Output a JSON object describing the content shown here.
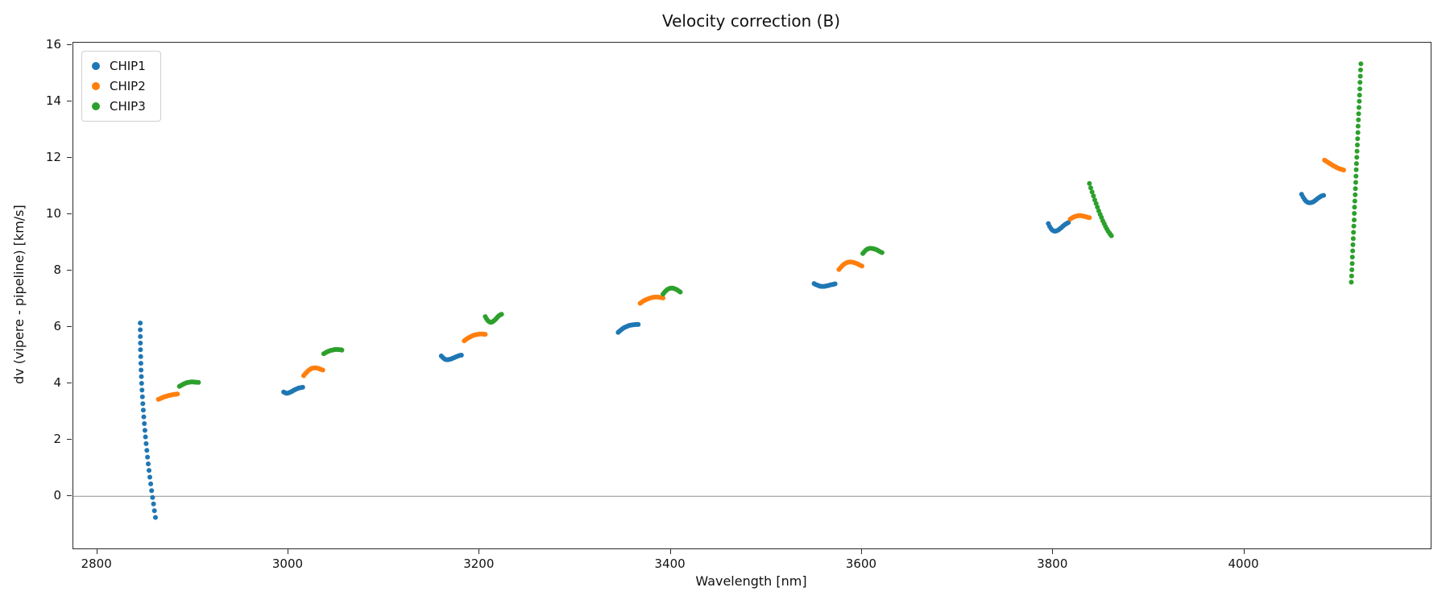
{
  "chart_data": {
    "type": "scatter",
    "title": "Velocity correction (B)",
    "xlabel": "Wavelength [nm]",
    "ylabel": "dv (vipere - pipeline) [km/s]",
    "xlim": [
      2775,
      4195
    ],
    "ylim": [
      -1.85,
      16.1
    ],
    "x_ticks": [
      2800,
      3000,
      3200,
      3400,
      3600,
      3800,
      4000
    ],
    "y_ticks": [
      0,
      2,
      4,
      6,
      8,
      10,
      12,
      14,
      16
    ],
    "grid": false,
    "legend_position": "upper-left",
    "zero_line": {
      "y": 0,
      "color": "#909090"
    },
    "series": [
      {
        "name": "CHIP1",
        "color": "#1f77b4",
        "clusters": [
          {
            "x": [
              2845.0,
              2845.0,
              2845.1,
              2845.2,
              2845.3,
              2845.5,
              2845.7,
              2845.9,
              2846.2,
              2846.5,
              2846.9,
              2847.3,
              2847.7,
              2848.2,
              2848.7,
              2849.3,
              2849.9,
              2850.5,
              2851.2,
              2851.9,
              2852.6,
              2853.4,
              2854.2,
              2855.1,
              2856.0,
              2856.9,
              2857.9,
              2858.9,
              2859.9,
              2861.0
            ],
            "y": [
              6.15,
              5.91,
              5.67,
              5.44,
              5.2,
              4.96,
              4.72,
              4.48,
              4.25,
              4.01,
              3.77,
              3.53,
              3.29,
              3.06,
              2.82,
              2.58,
              2.34,
              2.11,
              1.87,
              1.63,
              1.39,
              1.15,
              0.92,
              0.68,
              0.44,
              0.2,
              -0.04,
              -0.27,
              -0.51,
              -0.75
            ]
          },
          {
            "x": [
              2995,
              2996.3,
              2997.6,
              2998.9,
              3000.2,
              3001.5,
              3002.8,
              3004.1,
              3005.4,
              3006.7,
              3008,
              3009.3,
              3010.6,
              3011.9,
              3013.2,
              3015
            ],
            "y": [
              3.7,
              3.68,
              3.66,
              3.66,
              3.67,
              3.69,
              3.71,
              3.73,
              3.76,
              3.78,
              3.8,
              3.82,
              3.84,
              3.85,
              3.86,
              3.87
            ]
          },
          {
            "x": [
              3160,
              3161.4,
              3162.8,
              3164.2,
              3165.6,
              3167,
              3168.4,
              3169.8,
              3171.2,
              3172.6,
              3174,
              3175.4,
              3176.8,
              3178.2,
              3179.6,
              3181
            ],
            "y": [
              4.98,
              4.93,
              4.89,
              4.86,
              4.85,
              4.85,
              4.86,
              4.87,
              4.89,
              4.91,
              4.93,
              4.95,
              4.97,
              4.99,
              5.0,
              5.01
            ]
          },
          {
            "x": [
              3345,
              3346.4,
              3347.8,
              3349.2,
              3350.6,
              3352,
              3353.4,
              3354.8,
              3356.2,
              3357.6,
              3359,
              3360.4,
              3361.8,
              3363.2,
              3364.6,
              3366
            ],
            "y": [
              5.82,
              5.86,
              5.9,
              5.94,
              5.97,
              6.0,
              6.02,
              6.04,
              6.06,
              6.07,
              6.08,
              6.09,
              6.09,
              6.1,
              6.1,
              6.1
            ]
          },
          {
            "x": [
              3550,
              3551.5,
              3553,
              3554.5,
              3556,
              3557.5,
              3559,
              3560.5,
              3562,
              3563.5,
              3565,
              3566.5,
              3568,
              3569.5,
              3571,
              3572
            ],
            "y": [
              7.55,
              7.52,
              7.5,
              7.48,
              7.46,
              7.45,
              7.45,
              7.45,
              7.46,
              7.47,
              7.48,
              7.5,
              7.51,
              7.52,
              7.53,
              7.54
            ]
          },
          {
            "x": [
              3795,
              3796.4,
              3797.8,
              3799.2,
              3800.6,
              3802,
              3803.4,
              3804.8,
              3806.2,
              3807.6,
              3809,
              3810.4,
              3811.8,
              3813.2,
              3814.6,
              3816
            ],
            "y": [
              9.68,
              9.58,
              9.5,
              9.45,
              9.42,
              9.41,
              9.42,
              9.44,
              9.47,
              9.51,
              9.55,
              9.59,
              9.63,
              9.66,
              9.69,
              9.72
            ]
          },
          {
            "x": [
              4060,
              4061.5,
              4063,
              4064.5,
              4066,
              4067.5,
              4069,
              4070.5,
              4072,
              4073.5,
              4075,
              4076.5,
              4078,
              4079.5,
              4081,
              4083
            ],
            "y": [
              10.72,
              10.62,
              10.54,
              10.48,
              10.44,
              10.42,
              10.42,
              10.43,
              10.45,
              10.48,
              10.52,
              10.56,
              10.6,
              10.63,
              10.66,
              10.68
            ]
          }
        ]
      },
      {
        "name": "CHIP2",
        "color": "#ff7f0e",
        "clusters": [
          {
            "x": [
              2864,
              2865.4,
              2866.8,
              2868.2,
              2869.6,
              2871,
              2872.4,
              2873.8,
              2875.2,
              2876.6,
              2878,
              2879.4,
              2880.8,
              2882.2,
              2884
            ],
            "y": [
              3.44,
              3.46,
              3.48,
              3.5,
              3.52,
              3.54,
              3.55,
              3.57,
              3.58,
              3.59,
              3.6,
              3.61,
              3.62,
              3.62,
              3.63
            ]
          },
          {
            "x": [
              3016,
              3017.4,
              3018.8,
              3020.2,
              3021.6,
              3023,
              3024.4,
              3025.8,
              3027.2,
              3028.6,
              3030,
              3031.4,
              3032.8,
              3034.2,
              3036
            ],
            "y": [
              4.28,
              4.34,
              4.39,
              4.44,
              4.48,
              4.51,
              4.54,
              4.55,
              4.56,
              4.56,
              4.55,
              4.54,
              4.52,
              4.5,
              4.48
            ]
          },
          {
            "x": [
              3184,
              3185.6,
              3187.2,
              3188.8,
              3190.4,
              3192,
              3193.6,
              3195.2,
              3196.8,
              3198.4,
              3200,
              3201.6,
              3203.2,
              3204.8,
              3206
            ],
            "y": [
              5.52,
              5.56,
              5.6,
              5.63,
              5.66,
              5.69,
              5.71,
              5.73,
              5.74,
              5.75,
              5.76,
              5.76,
              5.76,
              5.75,
              5.75
            ]
          },
          {
            "x": [
              3368,
              3369.7,
              3371.4,
              3373.1,
              3374.8,
              3376.5,
              3378.2,
              3379.9,
              3381.6,
              3383.3,
              3385,
              3386.7,
              3388.4,
              3390.1,
              3392
            ],
            "y": [
              6.85,
              6.89,
              6.93,
              6.96,
              6.99,
              7.01,
              7.03,
              7.05,
              7.06,
              7.07,
              7.07,
              7.07,
              7.06,
              7.05,
              7.04
            ]
          },
          {
            "x": [
              3576,
              3577.7,
              3579.4,
              3581.1,
              3582.8,
              3584.5,
              3586.2,
              3587.9,
              3589.6,
              3591.3,
              3593,
              3594.7,
              3596.4,
              3598.1,
              3600
            ],
            "y": [
              8.05,
              8.12,
              8.18,
              8.23,
              8.27,
              8.3,
              8.31,
              8.32,
              8.31,
              8.3,
              8.28,
              8.26,
              8.23,
              8.2,
              8.17
            ]
          },
          {
            "x": [
              3818,
              3819.4,
              3820.8,
              3822.2,
              3823.6,
              3825,
              3826.4,
              3827.8,
              3829.2,
              3830.6,
              3832,
              3833.4,
              3834.8,
              3836.2,
              3838
            ],
            "y": [
              9.84,
              9.87,
              9.9,
              9.92,
              9.94,
              9.95,
              9.96,
              9.96,
              9.96,
              9.95,
              9.94,
              9.93,
              9.92,
              9.9,
              9.89
            ]
          },
          {
            "x": [
              4084,
              4085.4,
              4086.8,
              4088.2,
              4089.6,
              4091,
              4092.4,
              4093.8,
              4095.2,
              4096.6,
              4098,
              4099.4,
              4100.8,
              4102.2,
              4104
            ],
            "y": [
              11.93,
              11.9,
              11.87,
              11.84,
              11.81,
              11.78,
              11.75,
              11.72,
              11.7,
              11.67,
              11.65,
              11.63,
              11.61,
              11.6,
              11.58
            ]
          }
        ]
      },
      {
        "name": "CHIP3",
        "color": "#2ca02c",
        "clusters": [
          {
            "x": [
              2886,
              2887.5,
              2889,
              2890.5,
              2892,
              2893.5,
              2895,
              2896.5,
              2898,
              2899.5,
              2901,
              2902.5,
              2904,
              2906
            ],
            "y": [
              3.9,
              3.93,
              3.96,
              3.99,
              4.01,
              4.03,
              4.04,
              4.05,
              4.06,
              4.06,
              4.06,
              4.05,
              4.05,
              4.04
            ]
          },
          {
            "x": [
              3037,
              3038.5,
              3040,
              3041.5,
              3043,
              3044.5,
              3046,
              3047.5,
              3049,
              3050.5,
              3052,
              3053.5,
              3055,
              3056
            ],
            "y": [
              5.06,
              5.09,
              5.12,
              5.14,
              5.16,
              5.18,
              5.19,
              5.2,
              5.21,
              5.21,
              5.21,
              5.2,
              5.2,
              5.19
            ]
          },
          {
            "x": [
              3206,
              3207.3,
              3208.6,
              3209.9,
              3211.2,
              3212.5,
              3213.8,
              3215.1,
              3216.4,
              3217.7,
              3219,
              3220.3,
              3221.6,
              3223
            ],
            "y": [
              6.38,
              6.3,
              6.24,
              6.2,
              6.18,
              6.18,
              6.2,
              6.23,
              6.27,
              6.32,
              6.37,
              6.41,
              6.44,
              6.46
            ]
          },
          {
            "x": [
              3392,
              3393.4,
              3394.8,
              3396.2,
              3397.6,
              3399,
              3400.4,
              3401.8,
              3403.2,
              3404.6,
              3406,
              3407.4,
              3408.8,
              3410
            ],
            "y": [
              7.18,
              7.24,
              7.29,
              7.33,
              7.36,
              7.38,
              7.39,
              7.39,
              7.38,
              7.36,
              7.34,
              7.31,
              7.28,
              7.25
            ]
          },
          {
            "x": [
              3601,
              3602.5,
              3604,
              3605.5,
              3607,
              3608.5,
              3610,
              3611.5,
              3613,
              3614.5,
              3616,
              3617.5,
              3619,
              3621
            ],
            "y": [
              8.62,
              8.68,
              8.73,
              8.77,
              8.79,
              8.8,
              8.8,
              8.79,
              8.78,
              8.76,
              8.74,
              8.71,
              8.68,
              8.65
            ]
          },
          {
            "x": [
              3838,
              3839.4,
              3840.8,
              3842.2,
              3843.6,
              3845,
              3846.4,
              3847.8,
              3849.2,
              3850.6,
              3852,
              3853.4,
              3854.8,
              3856.2,
              3857.6,
              3859,
              3860,
              3861
            ],
            "y": [
              11.1,
              10.95,
              10.8,
              10.66,
              10.52,
              10.39,
              10.26,
              10.13,
              10.01,
              9.9,
              9.78,
              9.68,
              9.58,
              9.49,
              9.41,
              9.34,
              9.29,
              9.25
            ]
          },
          {
            "x": [
              4112,
              4112.3,
              4112.6,
              4112.9,
              4113.1,
              4113.4,
              4113.7,
              4114,
              4114.3,
              4114.6,
              4114.9,
              4115.1,
              4115.4,
              4115.7,
              4116,
              4116.3,
              4116.6,
              4116.9,
              4117.1,
              4117.4,
              4117.7,
              4118,
              4118.3,
              4118.6,
              4118.9,
              4119.1,
              4119.4,
              4119.7,
              4120,
              4120.3,
              4120.6,
              4120.9,
              4121.1,
              4121.4,
              4121.7,
              4122
            ],
            "y": [
              7.6,
              7.82,
              8.04,
              8.26,
              8.49,
              8.71,
              8.93,
              9.15,
              9.37,
              9.59,
              9.81,
              10.04,
              10.26,
              10.48,
              10.7,
              10.92,
              11.14,
              11.36,
              11.59,
              11.81,
              12.03,
              12.25,
              12.47,
              12.69,
              12.91,
              13.14,
              13.36,
              13.58,
              13.8,
              14.02,
              14.24,
              14.46,
              14.69,
              14.91,
              15.13,
              15.35
            ]
          }
        ]
      }
    ]
  }
}
